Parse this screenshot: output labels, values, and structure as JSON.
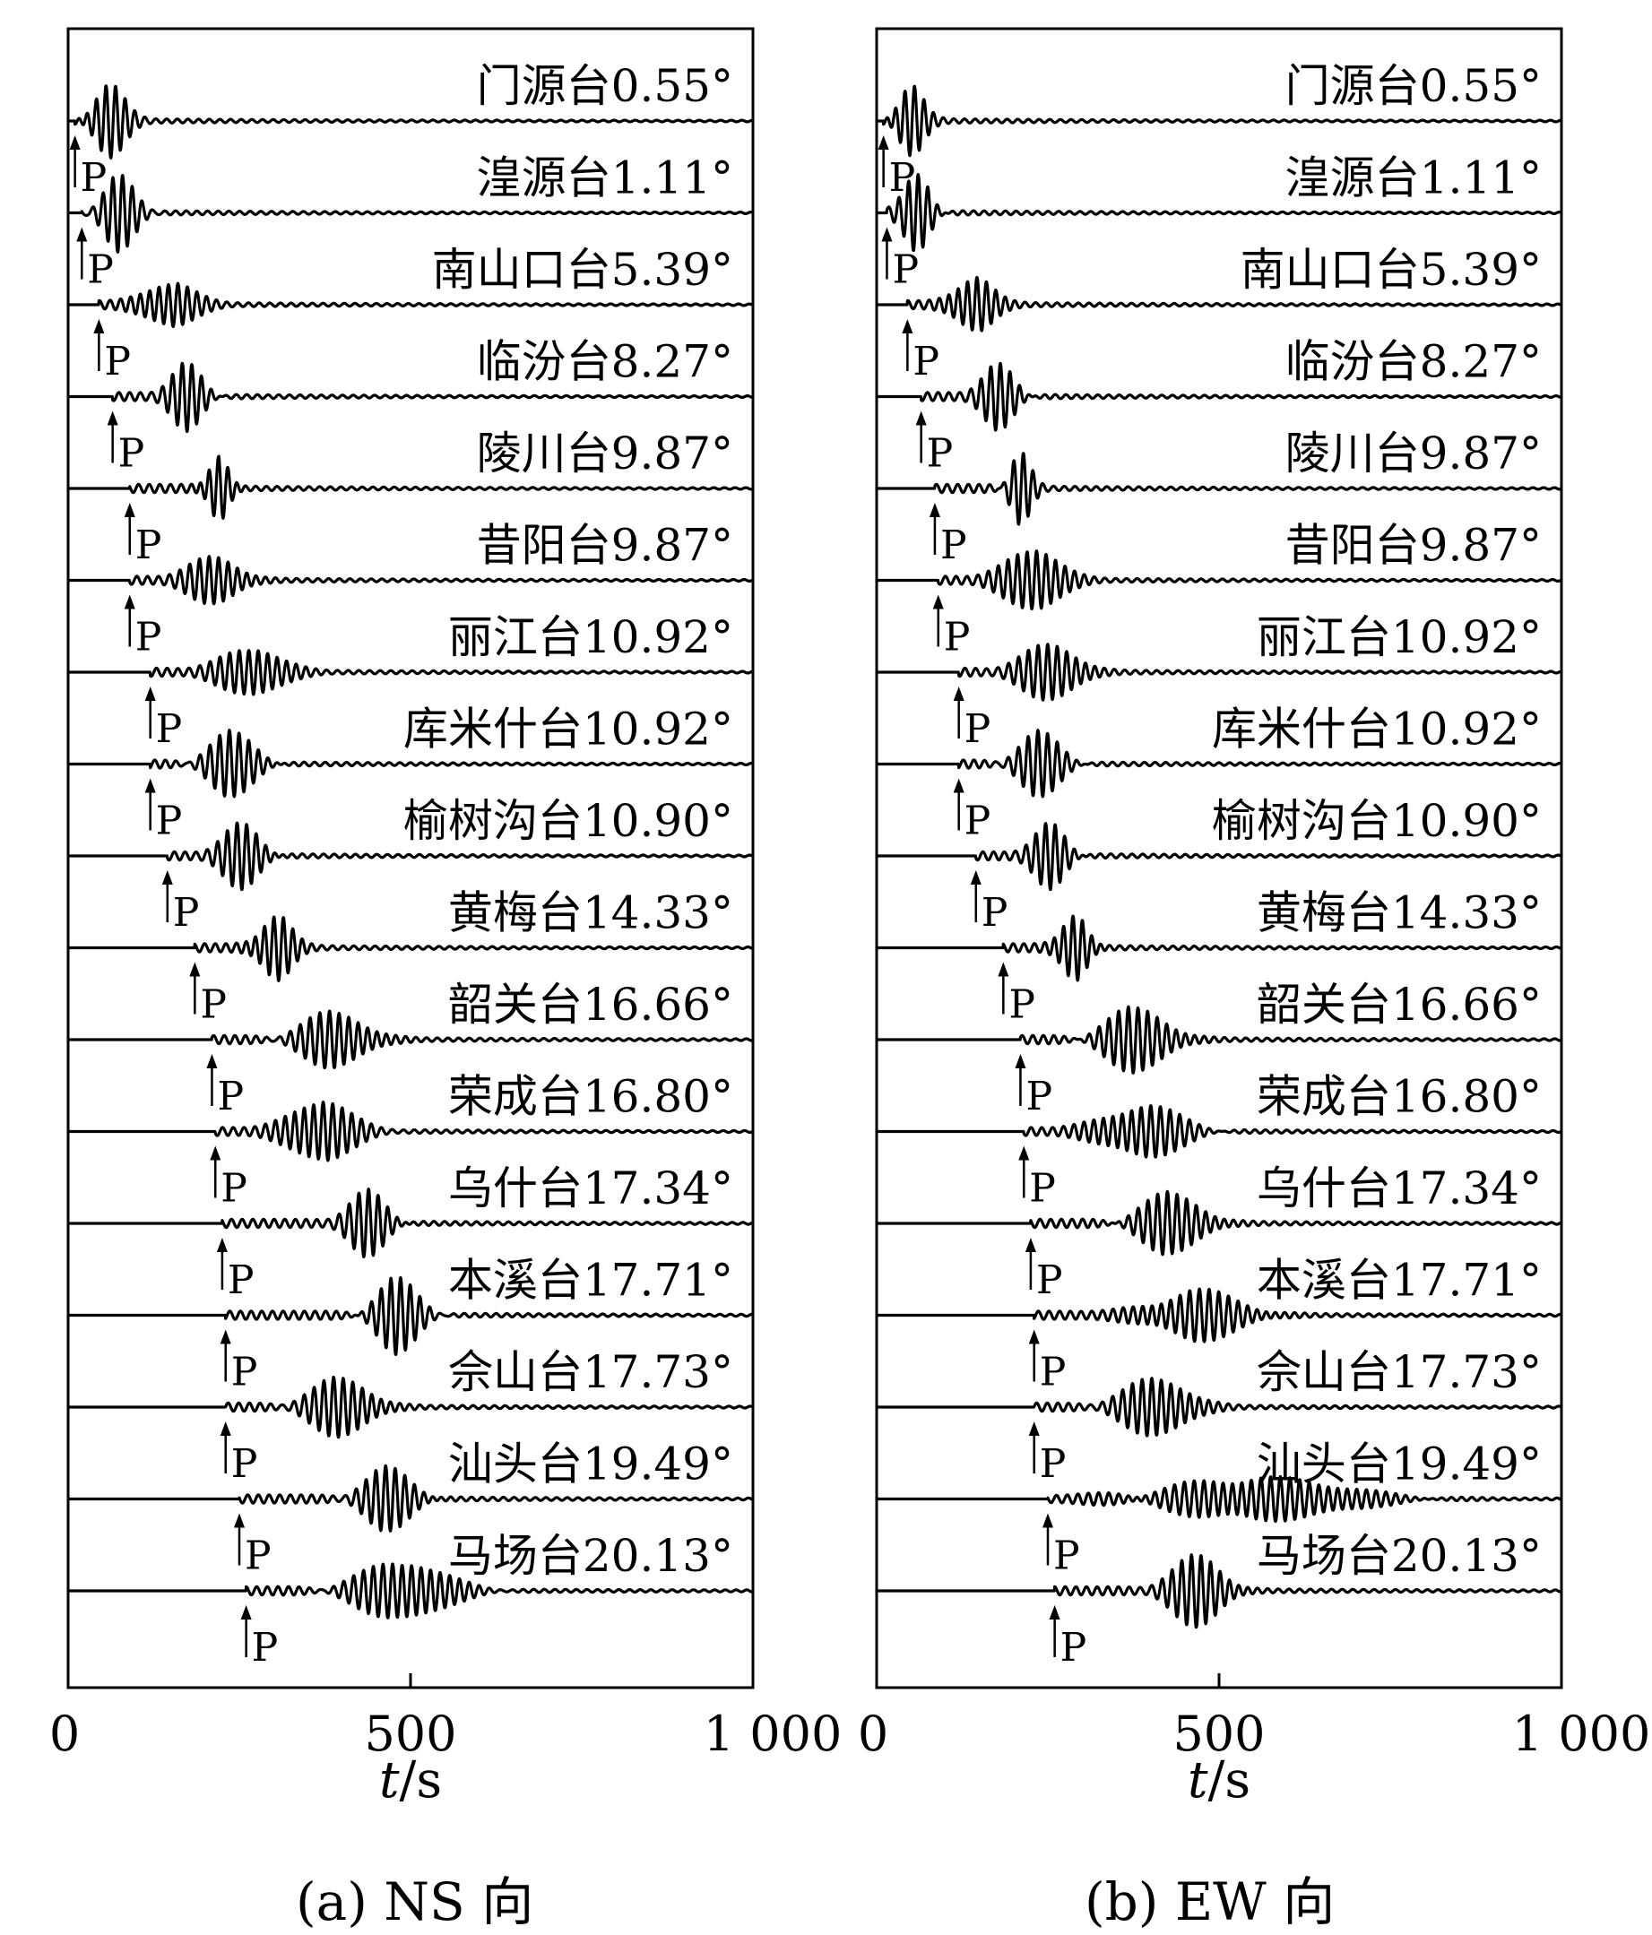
{
  "chart_data": [
    {
      "type": "line",
      "panel": "a",
      "xlabel": "t/s",
      "xlabel_italic": "t",
      "xlabel_unit": "/s",
      "xlim": [
        0,
        1000
      ],
      "xticks": [
        0,
        500,
        1000
      ],
      "xtick_labels": [
        "0",
        "500",
        "1 000"
      ],
      "caption": "(a) NS 向",
      "arrival_marker": "P",
      "stations": [
        {
          "label": "门源台0.55°",
          "p_arrival": 10,
          "packet_center": 60,
          "packet_width": 30,
          "amplitude": 1.0
        },
        {
          "label": "湟源台1.11°",
          "p_arrival": 20,
          "packet_center": 75,
          "packet_width": 30,
          "amplitude": 0.95
        },
        {
          "label": "南山口台5.39°",
          "p_arrival": 45,
          "packet_center": 150,
          "packet_width": 45,
          "amplitude": 0.65
        },
        {
          "label": "临汾台8.27°",
          "p_arrival": 65,
          "packet_center": 175,
          "packet_width": 30,
          "amplitude": 0.85
        },
        {
          "label": "陵川台9.87°",
          "p_arrival": 90,
          "packet_center": 220,
          "packet_width": 20,
          "amplitude": 0.95
        },
        {
          "label": "昔阳台9.87°",
          "p_arrival": 90,
          "packet_center": 215,
          "packet_width": 45,
          "amplitude": 0.65
        },
        {
          "label": "丽江台10.92°",
          "p_arrival": 120,
          "packet_center": 270,
          "packet_width": 55,
          "amplitude": 0.65
        },
        {
          "label": "库米什台10.92°",
          "p_arrival": 120,
          "packet_center": 240,
          "packet_width": 45,
          "amplitude": 0.8
        },
        {
          "label": "榆树沟台10.90°",
          "p_arrival": 145,
          "packet_center": 255,
          "packet_width": 35,
          "amplitude": 0.85
        },
        {
          "label": "黄梅台14.33°",
          "p_arrival": 185,
          "packet_center": 305,
          "packet_width": 30,
          "amplitude": 0.95
        },
        {
          "label": "韶关台16.66°",
          "p_arrival": 210,
          "packet_center": 390,
          "packet_width": 60,
          "amplitude": 0.7
        },
        {
          "label": "荣成台16.80°",
          "p_arrival": 215,
          "packet_center": 370,
          "packet_width": 55,
          "amplitude": 0.85
        },
        {
          "label": "乌什台17.34°",
          "p_arrival": 225,
          "packet_center": 440,
          "packet_width": 35,
          "amplitude": 0.85
        },
        {
          "label": "本溪台17.71°",
          "p_arrival": 230,
          "packet_center": 480,
          "packet_width": 40,
          "amplitude": 0.95
        },
        {
          "label": "佘山台17.73°",
          "p_arrival": 230,
          "packet_center": 400,
          "packet_width": 55,
          "amplitude": 0.75
        },
        {
          "label": "汕头台19.49°",
          "p_arrival": 250,
          "packet_center": 470,
          "packet_width": 45,
          "amplitude": 0.8
        },
        {
          "label": "马场台20.13°",
          "p_arrival": 260,
          "packet_center": 490,
          "packet_width": 80,
          "amplitude": 0.75
        }
      ]
    },
    {
      "type": "line",
      "panel": "b",
      "xlabel": "t/s",
      "xlabel_italic": "t",
      "xlabel_unit": "/s",
      "xlim": [
        0,
        1000
      ],
      "xticks": [
        0,
        500,
        1000
      ],
      "xtick_labels": [
        "0",
        "500",
        "1 000"
      ],
      "caption": "(b) EW 向",
      "arrival_marker": "P",
      "stations": [
        {
          "label": "门源台0.55°",
          "p_arrival": 10,
          "packet_center": 50,
          "packet_width": 25,
          "amplitude": 1.0
        },
        {
          "label": "湟源台1.11°",
          "p_arrival": 15,
          "packet_center": 60,
          "packet_width": 25,
          "amplitude": 1.0
        },
        {
          "label": "南山口台5.39°",
          "p_arrival": 45,
          "packet_center": 145,
          "packet_width": 35,
          "amplitude": 0.8
        },
        {
          "label": "临汾台8.27°",
          "p_arrival": 65,
          "packet_center": 180,
          "packet_width": 30,
          "amplitude": 0.85
        },
        {
          "label": "陵川台9.87°",
          "p_arrival": 85,
          "packet_center": 210,
          "packet_width": 20,
          "amplitude": 0.95
        },
        {
          "label": "昔阳台9.87°",
          "p_arrival": 90,
          "packet_center": 230,
          "packet_width": 50,
          "amplitude": 0.85
        },
        {
          "label": "丽江台10.92°",
          "p_arrival": 120,
          "packet_center": 255,
          "packet_width": 50,
          "amplitude": 0.75
        },
        {
          "label": "库米什台10.92°",
          "p_arrival": 120,
          "packet_center": 240,
          "packet_width": 40,
          "amplitude": 0.8
        },
        {
          "label": "榆树沟台10.90°",
          "p_arrival": 145,
          "packet_center": 255,
          "packet_width": 30,
          "amplitude": 0.85
        },
        {
          "label": "黄梅台14.33°",
          "p_arrival": 185,
          "packet_center": 290,
          "packet_width": 25,
          "amplitude": 0.95
        },
        {
          "label": "韶关台16.66°",
          "p_arrival": 210,
          "packet_center": 380,
          "packet_width": 60,
          "amplitude": 0.8
        },
        {
          "label": "荣成台16.80°",
          "p_arrival": 215,
          "packet_center": 390,
          "packet_width": 70,
          "amplitude": 0.7
        },
        {
          "label": "乌什台17.34°",
          "p_arrival": 225,
          "packet_center": 430,
          "packet_width": 60,
          "amplitude": 0.75
        },
        {
          "label": "本溪台17.71°",
          "p_arrival": 230,
          "packet_center": 470,
          "packet_width": 80,
          "amplitude": 0.65
        },
        {
          "label": "佘山台17.73°",
          "p_arrival": 230,
          "packet_center": 410,
          "packet_width": 60,
          "amplitude": 0.75
        },
        {
          "label": "汕头台19.49°",
          "p_arrival": 250,
          "packet_center": 560,
          "packet_width": 160,
          "amplitude": 0.55
        },
        {
          "label": "马场台20.13°",
          "p_arrival": 260,
          "packet_center": 470,
          "packet_width": 45,
          "amplitude": 0.95
        }
      ]
    }
  ]
}
